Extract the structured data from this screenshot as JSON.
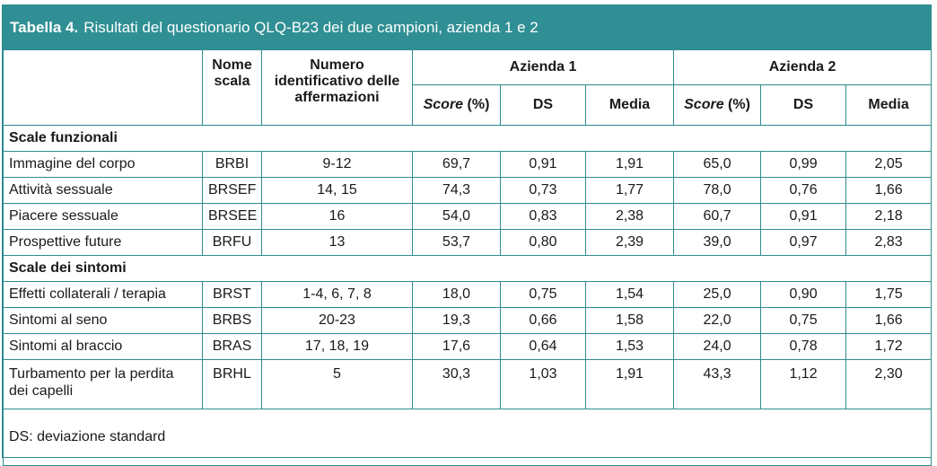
{
  "title": {
    "label": "Tabella 4.",
    "text": "Risultati del questionario QLQ-B23 dei due campioni, azienda 1 e 2"
  },
  "headers": {
    "nome_scala": "Nome scala",
    "numero": "Numero identificativo delle affermazioni",
    "azienda1": "Azienda 1",
    "azienda2": "Azienda 2",
    "score_em": "Score",
    "score_unit": " (%)",
    "ds": "DS",
    "media": "Media"
  },
  "sections": [
    {
      "title": "Scale funzionali",
      "rows": [
        {
          "name": "Immagine del corpo",
          "code": "BRBI",
          "items": "9-12",
          "a1_score": "69,7",
          "a1_ds": "0,91",
          "a1_media": "1,91",
          "a2_score": "65,0",
          "a2_ds": "0,99",
          "a2_media": "2,05"
        },
        {
          "name": "Attività sessuale",
          "code": "BRSEF",
          "items": "14, 15",
          "a1_score": "74,3",
          "a1_ds": "0,73",
          "a1_media": "1,77",
          "a2_score": "78,0",
          "a2_ds": "0,76",
          "a2_media": "1,66"
        },
        {
          "name": "Piacere sessuale",
          "code": "BRSEE",
          "items": "16",
          "a1_score": "54,0",
          "a1_ds": "0,83",
          "a1_media": "2,38",
          "a2_score": "60,7",
          "a2_ds": "0,91",
          "a2_media": "2,18"
        },
        {
          "name": "Prospettive future",
          "code": "BRFU",
          "items": "13",
          "a1_score": "53,7",
          "a1_ds": "0,80",
          "a1_media": "2,39",
          "a2_score": "39,0",
          "a2_ds": "0,97",
          "a2_media": "2,83"
        }
      ]
    },
    {
      "title": "Scale dei sintomi",
      "rows": [
        {
          "name": "Effetti collaterali / terapia",
          "code": "BRST",
          "items": "1-4, 6, 7, 8",
          "a1_score": "18,0",
          "a1_ds": "0,75",
          "a1_media": "1,54",
          "a2_score": "25,0",
          "a2_ds": "0,90",
          "a2_media": "1,75"
        },
        {
          "name": "Sintomi al seno",
          "code": "BRBS",
          "items": "20-23",
          "a1_score": "19,3",
          "a1_ds": "0,66",
          "a1_media": "1,58",
          "a2_score": "22,0",
          "a2_ds": "0,75",
          "a2_media": "1,66"
        },
        {
          "name": "Sintomi al braccio",
          "code": "BRAS",
          "items": "17, 18, 19",
          "a1_score": "17,6",
          "a1_ds": "0,64",
          "a1_media": "1,53",
          "a2_score": "24,0",
          "a2_ds": "0,78",
          "a2_media": "1,72"
        },
        {
          "name": "Turbamento per la perdita dei capelli",
          "code": "BRHL",
          "items": "5",
          "a1_score": "30,3",
          "a1_ds": "1,03",
          "a1_media": "1,91",
          "a2_score": "43,3",
          "a2_ds": "1,12",
          "a2_media": "2,30"
        }
      ]
    }
  ],
  "footnote": "DS: deviazione standard",
  "colors": {
    "header_bg": "#2f8f94",
    "border": "#2e8b8f"
  }
}
